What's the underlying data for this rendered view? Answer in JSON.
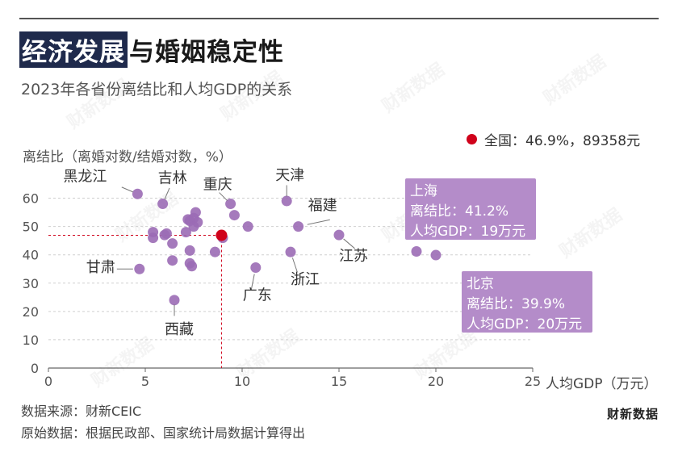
{
  "header": {
    "title_highlight": "经济发展",
    "title_rest": "与婚姻稳定性",
    "subtitle": "2023年各省份离结比和人均GDP的关系"
  },
  "legend": {
    "label": "全国：46.9%，89358元",
    "color": "#d0021b"
  },
  "footer": {
    "source": "数据来源：财新CEIC",
    "original": "原始数据：根据民政部、国家统计局数据计算得出",
    "brand": "财新数据"
  },
  "watermark": "财新数据",
  "colors": {
    "point": "#9b6bb5",
    "national": "#d0021b",
    "callout_bg": "#b48cc9"
  },
  "chart_data": {
    "type": "scatter",
    "xlabel": "人均GDP（万元）",
    "ylabel": "离结比（离婚对数/结婚对数，%）",
    "xlim": [
      0,
      25
    ],
    "ylim": [
      0,
      65
    ],
    "xticks": [
      0,
      5,
      10,
      15,
      20,
      25
    ],
    "yticks": [
      0,
      10,
      20,
      30,
      40,
      50,
      60
    ],
    "grid": "horizontal dashed",
    "national": {
      "x": 8.9358,
      "y": 46.9
    },
    "points": [
      {
        "name": "黑龙江",
        "x": 4.6,
        "y": 61.5
      },
      {
        "name": "吉林",
        "x": 5.9,
        "y": 58
      },
      {
        "name": "重庆",
        "x": 9.4,
        "y": 58
      },
      {
        "name": "天津",
        "x": 12.3,
        "y": 59
      },
      {
        "name": "福建",
        "x": 12.9,
        "y": 50
      },
      {
        "name": "江苏",
        "x": 15.0,
        "y": 47
      },
      {
        "name": "上海",
        "x": 19.0,
        "y": 41.2
      },
      {
        "name": "北京",
        "x": 20.0,
        "y": 39.9
      },
      {
        "name": "浙江",
        "x": 12.5,
        "y": 41
      },
      {
        "name": "广东",
        "x": 10.7,
        "y": 35.5
      },
      {
        "name": "甘肃",
        "x": 4.7,
        "y": 35
      },
      {
        "name": "西藏",
        "x": 6.5,
        "y": 24
      },
      {
        "name": "",
        "x": 5.4,
        "y": 48
      },
      {
        "name": "",
        "x": 5.4,
        "y": 46
      },
      {
        "name": "",
        "x": 6.0,
        "y": 47
      },
      {
        "name": "",
        "x": 6.1,
        "y": 47.5
      },
      {
        "name": "",
        "x": 6.4,
        "y": 44
      },
      {
        "name": "",
        "x": 6.4,
        "y": 38
      },
      {
        "name": "",
        "x": 7.1,
        "y": 48
      },
      {
        "name": "",
        "x": 7.2,
        "y": 52.5
      },
      {
        "name": "",
        "x": 7.3,
        "y": 52
      },
      {
        "name": "",
        "x": 7.5,
        "y": 53
      },
      {
        "name": "",
        "x": 7.5,
        "y": 50
      },
      {
        "name": "",
        "x": 7.6,
        "y": 55
      },
      {
        "name": "",
        "x": 7.7,
        "y": 51.5
      },
      {
        "name": "",
        "x": 7.3,
        "y": 41.5
      },
      {
        "name": "",
        "x": 7.3,
        "y": 37
      },
      {
        "name": "",
        "x": 7.4,
        "y": 36
      },
      {
        "name": "",
        "x": 8.6,
        "y": 41
      },
      {
        "name": "",
        "x": 9.0,
        "y": 46
      },
      {
        "name": "",
        "x": 9.6,
        "y": 54
      },
      {
        "name": "",
        "x": 10.3,
        "y": 50
      }
    ],
    "callouts": [
      {
        "lines": [
          "上海",
          "离结比：41.2%",
          "人均GDP：19万元"
        ]
      },
      {
        "lines": [
          "北京",
          "离结比：39.9%",
          "人均GDP：20万元"
        ]
      }
    ]
  }
}
